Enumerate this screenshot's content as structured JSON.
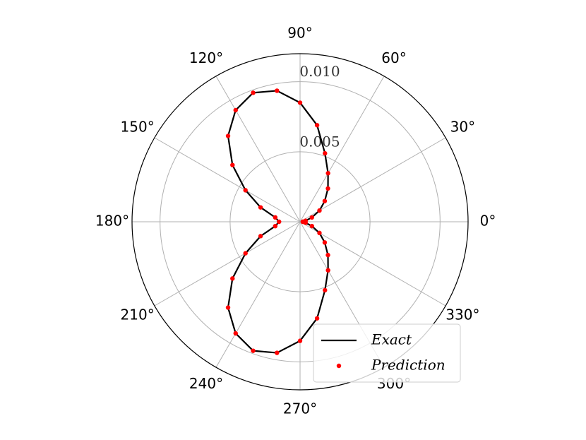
{
  "chart_data": {
    "type": "polar",
    "theta": [
      0,
      10,
      20,
      30,
      40,
      50,
      60,
      70,
      80,
      90,
      100,
      110,
      120,
      130,
      140,
      150,
      160,
      170,
      180,
      190,
      200,
      210,
      220,
      230,
      240,
      250,
      260,
      270,
      280,
      290,
      300,
      310,
      320,
      330,
      340,
      350,
      360
    ],
    "series": [
      {
        "name": "Exact",
        "color": "#000000",
        "style": "line",
        "values": [
          0.0002,
          0.0004,
          0.0009,
          0.0016,
          0.0023,
          0.0031,
          0.004,
          0.0052,
          0.007,
          0.0085,
          0.0095,
          0.0098,
          0.0092,
          0.008,
          0.0063,
          0.0045,
          0.003,
          0.0018,
          0.0015,
          0.0018,
          0.003,
          0.0045,
          0.0063,
          0.008,
          0.0092,
          0.0098,
          0.0095,
          0.0085,
          0.007,
          0.0052,
          0.004,
          0.0031,
          0.0023,
          0.0016,
          0.0009,
          0.0004,
          0.0002
        ]
      },
      {
        "name": "Prediction",
        "color": "#ff0000",
        "style": "points",
        "values": [
          0.0002,
          0.0004,
          0.0009,
          0.0016,
          0.0023,
          0.0031,
          0.004,
          0.0052,
          0.007,
          0.0085,
          0.0095,
          0.0098,
          0.0092,
          0.008,
          0.0063,
          0.0045,
          0.003,
          0.0018,
          0.0015,
          0.0018,
          0.003,
          0.0045,
          0.0063,
          0.008,
          0.0092,
          0.0098,
          0.0095,
          0.0085,
          0.007,
          0.0052,
          0.004,
          0.0031,
          0.0023,
          0.0016,
          0.0009,
          0.0004,
          0.0002
        ]
      }
    ],
    "rlim": [
      0,
      0.012
    ],
    "rticks": [
      0.005,
      {
        "value": 0.01,
        "label": "0.010"
      }
    ],
    "thetaticks": [
      {
        "value": 0,
        "label": "0°"
      },
      {
        "value": 30,
        "label": "30°"
      },
      {
        "value": 60,
        "label": "60°"
      },
      {
        "value": 90,
        "label": "90°"
      },
      {
        "value": 120,
        "label": "120°"
      },
      {
        "value": 150,
        "label": "150°"
      },
      {
        "value": 180,
        "label": "180°"
      },
      {
        "value": 210,
        "label": "210°"
      },
      {
        "value": 240,
        "label": "240°"
      },
      {
        "value": 270,
        "label": "270°"
      },
      {
        "value": 300,
        "label": "300°"
      },
      {
        "value": 330,
        "label": "330°"
      }
    ],
    "grid": true,
    "legend": "lower right"
  }
}
